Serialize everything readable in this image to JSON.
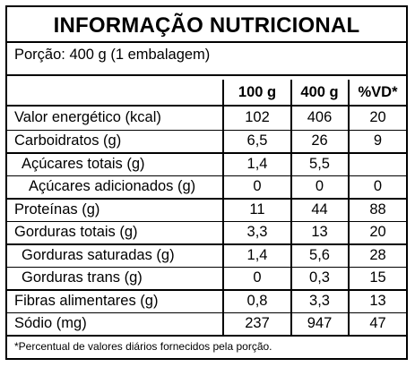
{
  "title": "INFORMAÇÃO NUTRICIONAL",
  "portion": "Porção: 400 g (1 embalagem)",
  "columns": [
    "100 g",
    "400 g",
    "%VD*"
  ],
  "rows": [
    {
      "name": "Valor energético (kcal)",
      "v100": "102",
      "v400": "406",
      "vd": "20"
    },
    {
      "name": "Carboidratos (g)",
      "v100": "6,5",
      "v400": "26",
      "vd": "9"
    },
    {
      "name": "Açúcares totais (g)",
      "v100": "1,4",
      "v400": "5,5",
      "vd": ""
    },
    {
      "name": "Açúcares adicionados (g)",
      "v100": "0",
      "v400": "0",
      "vd": "0"
    },
    {
      "name": "Proteínas (g)",
      "v100": "11",
      "v400": "44",
      "vd": "88"
    },
    {
      "name": "Gorduras totais (g)",
      "v100": "3,3",
      "v400": "13",
      "vd": "20"
    },
    {
      "name": "Gorduras saturadas (g)",
      "v100": "1,4",
      "v400": "5,6",
      "vd": "28"
    },
    {
      "name": "Gorduras trans (g)",
      "v100": "0",
      "v400": "0,3",
      "vd": "15"
    },
    {
      "name": "Fibras alimentares (g)",
      "v100": "0,8",
      "v400": "3,3",
      "vd": "13"
    },
    {
      "name": "Sódio (mg)",
      "v100": "237",
      "v400": "947",
      "vd": "47"
    }
  ],
  "footnote": "*Percentual de valores diários fornecidos pela porção."
}
